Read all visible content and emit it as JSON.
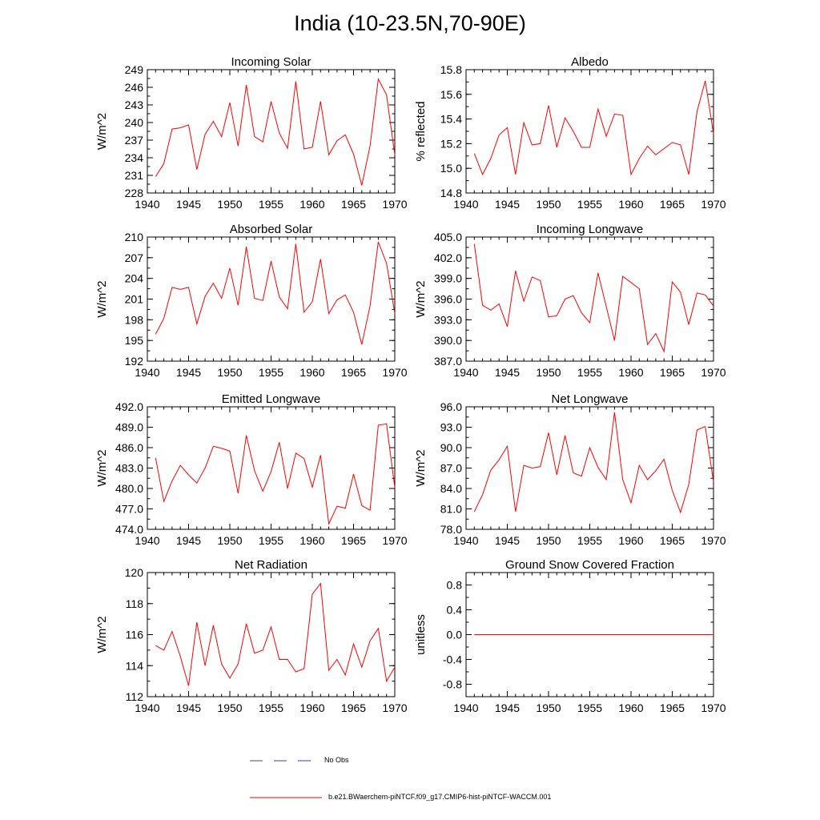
{
  "title": "India (10-23.5N,70-90E)",
  "colors": {
    "series": "#ff0000",
    "obs": "#3b3bd6",
    "axis": "#000000"
  },
  "legend": {
    "obs_label": "No Obs",
    "model_label": "b.e21.BWaerchem-piNTCF.f09_g17.CMIP6-hist-piNTCF-WACCM.001"
  },
  "chart_data": [
    {
      "type": "line",
      "title": "Incoming Solar",
      "ylabel": "W/m^2",
      "xlim": [
        1940,
        1970
      ],
      "xticks": [
        1940,
        1945,
        1950,
        1955,
        1960,
        1965,
        1970
      ],
      "ylim": [
        228,
        249
      ],
      "yticks": [
        "228",
        "231",
        "234",
        "237",
        "240",
        "243",
        "246",
        "249"
      ],
      "x": [
        1941,
        1942,
        1943,
        1944,
        1945,
        1946,
        1947,
        1948,
        1949,
        1950,
        1951,
        1952,
        1953,
        1954,
        1955,
        1956,
        1957,
        1958,
        1959,
        1960,
        1961,
        1962,
        1963,
        1964,
        1965,
        1966,
        1967,
        1968,
        1969,
        1970
      ],
      "series": [
        {
          "values": [
            230.8,
            233.0,
            238.9,
            239.1,
            239.6,
            232.0,
            238.0,
            240.2,
            237.6,
            243.4,
            236.0,
            246.4,
            237.6,
            236.7,
            243.6,
            238.2,
            235.6,
            247.0,
            235.5,
            235.8,
            243.6,
            234.5,
            236.9,
            237.9,
            234.6,
            229.3,
            236.0,
            247.4,
            244.7,
            234.5
          ]
        }
      ]
    },
    {
      "type": "line",
      "title": "Albedo",
      "ylabel": "% reflected",
      "xlim": [
        1940,
        1970
      ],
      "xticks": [
        1940,
        1945,
        1950,
        1955,
        1960,
        1965,
        1970
      ],
      "ylim": [
        14.8,
        15.8
      ],
      "yticks": [
        "14.8",
        "15.0",
        "15.2",
        "15.4",
        "15.6",
        "15.8"
      ],
      "x": [
        1941,
        1942,
        1943,
        1944,
        1945,
        1946,
        1947,
        1948,
        1949,
        1950,
        1951,
        1952,
        1953,
        1954,
        1955,
        1956,
        1957,
        1958,
        1959,
        1960,
        1961,
        1962,
        1963,
        1964,
        1965,
        1966,
        1967,
        1968,
        1969,
        1970
      ],
      "series": [
        {
          "values": [
            15.12,
            14.95,
            15.08,
            15.27,
            15.33,
            14.95,
            15.37,
            15.19,
            15.2,
            15.51,
            15.17,
            15.41,
            15.3,
            15.17,
            15.17,
            15.48,
            15.26,
            15.44,
            15.43,
            14.95,
            15.08,
            15.18,
            15.11,
            15.16,
            15.21,
            15.19,
            14.95,
            15.46,
            15.71,
            15.28
          ]
        }
      ]
    },
    {
      "type": "line",
      "title": "Absorbed Solar",
      "ylabel": "W/m^2",
      "xlim": [
        1940,
        1970
      ],
      "xticks": [
        1940,
        1945,
        1950,
        1955,
        1960,
        1965,
        1970
      ],
      "ylim": [
        192,
        210
      ],
      "yticks": [
        "192",
        "195",
        "198",
        "201",
        "204",
        "207",
        "210"
      ],
      "x": [
        1941,
        1942,
        1943,
        1944,
        1945,
        1946,
        1947,
        1948,
        1949,
        1950,
        1951,
        1952,
        1953,
        1954,
        1955,
        1956,
        1957,
        1958,
        1959,
        1960,
        1961,
        1962,
        1963,
        1964,
        1965,
        1966,
        1967,
        1968,
        1969,
        1970
      ],
      "series": [
        {
          "values": [
            195.9,
            198.2,
            202.7,
            202.4,
            202.7,
            197.4,
            201.4,
            203.3,
            201.1,
            205.5,
            200.1,
            208.6,
            201.1,
            200.8,
            206.5,
            201.3,
            199.6,
            209.0,
            199.1,
            200.6,
            206.8,
            198.9,
            200.9,
            201.6,
            199.1,
            194.4,
            200.0,
            209.3,
            206.2,
            198.9
          ]
        }
      ]
    },
    {
      "type": "line",
      "title": "Incoming Longwave",
      "ylabel": "W/m^2",
      "xlim": [
        1940,
        1970
      ],
      "xticks": [
        1940,
        1945,
        1950,
        1955,
        1960,
        1965,
        1970
      ],
      "ylim": [
        387.0,
        405.0
      ],
      "yticks": [
        "387.0",
        "390.0",
        "393.0",
        "396.0",
        "399.0",
        "402.0",
        "405.0"
      ],
      "x": [
        1941,
        1942,
        1943,
        1944,
        1945,
        1946,
        1947,
        1948,
        1949,
        1950,
        1951,
        1952,
        1953,
        1954,
        1955,
        1956,
        1957,
        1958,
        1959,
        1960,
        1961,
        1962,
        1963,
        1964,
        1965,
        1966,
        1967,
        1968,
        1969,
        1970
      ],
      "series": [
        {
          "values": [
            404.0,
            395.1,
            394.4,
            395.3,
            392.0,
            400.1,
            395.7,
            399.2,
            398.7,
            393.4,
            393.6,
            396.0,
            396.5,
            394.0,
            392.6,
            399.8,
            394.9,
            390.0,
            399.3,
            398.4,
            397.5,
            389.4,
            391.0,
            388.4,
            398.5,
            397.0,
            392.3,
            396.9,
            396.6,
            395.0
          ]
        }
      ]
    },
    {
      "type": "line",
      "title": "Emitted Longwave",
      "ylabel": "W/m^2",
      "xlim": [
        1940,
        1970
      ],
      "xticks": [
        1940,
        1945,
        1950,
        1955,
        1960,
        1965,
        1970
      ],
      "ylim": [
        474.0,
        492.0
      ],
      "yticks": [
        "474.0",
        "477.0",
        "480.0",
        "483.0",
        "486.0",
        "489.0",
        "492.0"
      ],
      "x": [
        1941,
        1942,
        1943,
        1944,
        1945,
        1946,
        1947,
        1948,
        1949,
        1950,
        1951,
        1952,
        1953,
        1954,
        1955,
        1956,
        1957,
        1958,
        1959,
        1960,
        1961,
        1962,
        1963,
        1964,
        1965,
        1966,
        1967,
        1968,
        1969,
        1970
      ],
      "series": [
        {
          "values": [
            484.5,
            478.1,
            481.1,
            483.4,
            482.0,
            480.8,
            483.0,
            486.2,
            485.9,
            485.5,
            479.3,
            487.8,
            482.6,
            479.6,
            482.5,
            486.8,
            480.0,
            485.2,
            484.4,
            480.2,
            484.9,
            474.8,
            477.4,
            477.1,
            482.1,
            477.5,
            476.8,
            489.3,
            489.5,
            480.1
          ]
        }
      ]
    },
    {
      "type": "line",
      "title": "Net Longwave",
      "ylabel": "W/m^2",
      "xlim": [
        1940,
        1970
      ],
      "xticks": [
        1940,
        1945,
        1950,
        1955,
        1960,
        1965,
        1970
      ],
      "ylim": [
        78.0,
        96.0
      ],
      "yticks": [
        "78.0",
        "81.0",
        "84.0",
        "87.0",
        "90.0",
        "93.0",
        "96.0"
      ],
      "x": [
        1941,
        1942,
        1943,
        1944,
        1945,
        1946,
        1947,
        1948,
        1949,
        1950,
        1951,
        1952,
        1953,
        1954,
        1955,
        1956,
        1957,
        1958,
        1959,
        1960,
        1961,
        1962,
        1963,
        1964,
        1965,
        1966,
        1967,
        1968,
        1969,
        1970
      ],
      "series": [
        {
          "values": [
            80.6,
            83.1,
            86.7,
            88.2,
            90.2,
            80.6,
            87.4,
            87.0,
            87.2,
            92.2,
            86.0,
            91.8,
            86.3,
            85.8,
            90.0,
            87.1,
            85.3,
            95.2,
            85.3,
            81.9,
            87.4,
            85.3,
            86.6,
            88.3,
            83.7,
            80.5,
            84.6,
            92.6,
            93.1,
            85.0
          ]
        }
      ]
    },
    {
      "type": "line",
      "title": "Net Radiation",
      "ylabel": "W/m^2",
      "xlim": [
        1940,
        1970
      ],
      "xticks": [
        1940,
        1945,
        1950,
        1955,
        1960,
        1965,
        1970
      ],
      "ylim": [
        112,
        120
      ],
      "yticks": [
        "112",
        "114",
        "116",
        "118",
        "120"
      ],
      "x": [
        1941,
        1942,
        1943,
        1944,
        1945,
        1946,
        1947,
        1948,
        1949,
        1950,
        1951,
        1952,
        1953,
        1954,
        1955,
        1956,
        1957,
        1958,
        1959,
        1960,
        1961,
        1962,
        1963,
        1964,
        1965,
        1966,
        1967,
        1968,
        1969,
        1970
      ],
      "series": [
        {
          "values": [
            115.3,
            115.0,
            116.2,
            114.6,
            112.7,
            116.8,
            114.0,
            116.6,
            114.1,
            113.2,
            114.1,
            116.7,
            114.8,
            115.0,
            116.5,
            114.4,
            114.4,
            113.6,
            113.8,
            118.6,
            119.3,
            113.7,
            114.4,
            113.4,
            115.4,
            113.9,
            115.6,
            116.4,
            113.0,
            113.9
          ]
        }
      ]
    },
    {
      "type": "line",
      "title": "Ground Snow Covered Fraction",
      "ylabel": "unitless",
      "xlim": [
        1940,
        1970
      ],
      "xticks": [
        1940,
        1945,
        1950,
        1955,
        1960,
        1965,
        1970
      ],
      "ylim": [
        -1.0,
        1.0
      ],
      "yticks": [
        "-0.8",
        "-0.4",
        "0.0",
        "0.4",
        "0.8"
      ],
      "x": [
        1941,
        1942,
        1943,
        1944,
        1945,
        1946,
        1947,
        1948,
        1949,
        1950,
        1951,
        1952,
        1953,
        1954,
        1955,
        1956,
        1957,
        1958,
        1959,
        1960,
        1961,
        1962,
        1963,
        1964,
        1965,
        1966,
        1967,
        1968,
        1969,
        1970
      ],
      "series": [
        {
          "values": [
            0,
            0,
            0,
            0,
            0,
            0,
            0,
            0,
            0,
            0,
            0,
            0,
            0,
            0,
            0,
            0,
            0,
            0,
            0,
            0,
            0,
            0,
            0,
            0,
            0,
            0,
            0,
            0,
            0,
            0
          ]
        }
      ]
    }
  ]
}
